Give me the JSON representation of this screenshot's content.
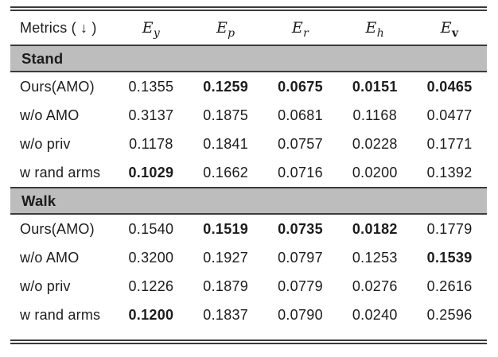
{
  "page": {
    "background": "#ffffff",
    "band_color": "#bdbdbd",
    "rule_color": "#3a3a3a",
    "text_color": "#1c1c1c"
  },
  "header": {
    "metrics_label": "Metrics ( ↓ )",
    "columns": [
      {
        "base": "E",
        "sub": "y",
        "bold_sub": false
      },
      {
        "base": "E",
        "sub": "p",
        "bold_sub": false
      },
      {
        "base": "E",
        "sub": "r",
        "bold_sub": false
      },
      {
        "base": "E",
        "sub": "h",
        "bold_sub": false
      },
      {
        "base": "E",
        "sub": "v",
        "bold_sub": true
      }
    ]
  },
  "sections": [
    {
      "name": "Stand",
      "rows": [
        {
          "label": "Ours(AMO)",
          "cells": [
            {
              "v": "0.1355",
              "b": false
            },
            {
              "v": "0.1259",
              "b": true
            },
            {
              "v": "0.0675",
              "b": true
            },
            {
              "v": "0.0151",
              "b": true
            },
            {
              "v": "0.0465",
              "b": true
            }
          ]
        },
        {
          "label": "w/o AMO",
          "cells": [
            {
              "v": "0.3137",
              "b": false
            },
            {
              "v": "0.1875",
              "b": false
            },
            {
              "v": "0.0681",
              "b": false
            },
            {
              "v": "0.1168",
              "b": false
            },
            {
              "v": "0.0477",
              "b": false
            }
          ]
        },
        {
          "label": "w/o priv",
          "cells": [
            {
              "v": "0.1178",
              "b": false
            },
            {
              "v": "0.1841",
              "b": false
            },
            {
              "v": "0.0757",
              "b": false
            },
            {
              "v": "0.0228",
              "b": false
            },
            {
              "v": "0.1771",
              "b": false
            }
          ]
        },
        {
          "label": "w rand arms",
          "cells": [
            {
              "v": "0.1029",
              "b": true
            },
            {
              "v": "0.1662",
              "b": false
            },
            {
              "v": "0.0716",
              "b": false
            },
            {
              "v": "0.0200",
              "b": false
            },
            {
              "v": "0.1392",
              "b": false
            }
          ]
        }
      ]
    },
    {
      "name": "Walk",
      "rows": [
        {
          "label": "Ours(AMO)",
          "cells": [
            {
              "v": "0.1540",
              "b": false
            },
            {
              "v": "0.1519",
              "b": true
            },
            {
              "v": "0.0735",
              "b": true
            },
            {
              "v": "0.0182",
              "b": true
            },
            {
              "v": "0.1779",
              "b": false
            }
          ]
        },
        {
          "label": "w/o AMO",
          "cells": [
            {
              "v": "0.3200",
              "b": false
            },
            {
              "v": "0.1927",
              "b": false
            },
            {
              "v": "0.0797",
              "b": false
            },
            {
              "v": "0.1253",
              "b": false
            },
            {
              "v": "0.1539",
              "b": true
            }
          ]
        },
        {
          "label": "w/o priv",
          "cells": [
            {
              "v": "0.1226",
              "b": false
            },
            {
              "v": "0.1879",
              "b": false
            },
            {
              "v": "0.0779",
              "b": false
            },
            {
              "v": "0.0276",
              "b": false
            },
            {
              "v": "0.2616",
              "b": false
            }
          ]
        },
        {
          "label": "w rand arms",
          "cells": [
            {
              "v": "0.1200",
              "b": true
            },
            {
              "v": "0.1837",
              "b": false
            },
            {
              "v": "0.0790",
              "b": false
            },
            {
              "v": "0.0240",
              "b": false
            },
            {
              "v": "0.2596",
              "b": false
            }
          ]
        }
      ]
    }
  ]
}
